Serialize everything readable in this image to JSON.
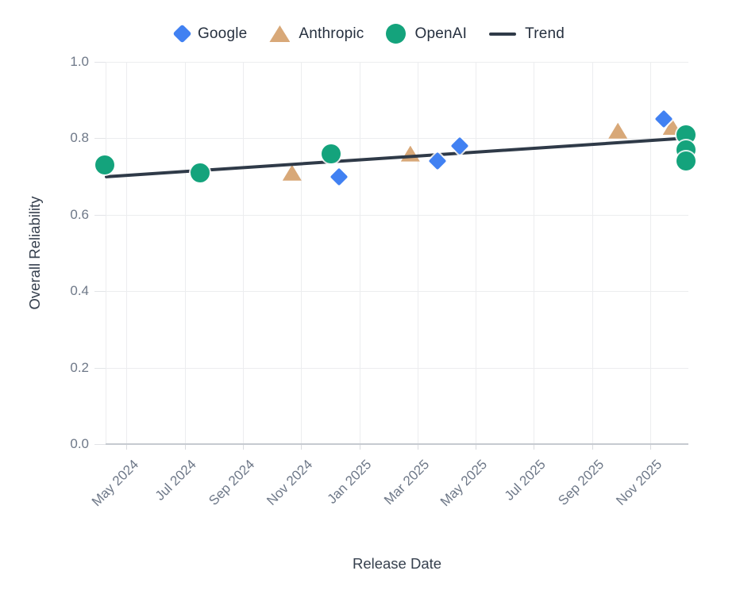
{
  "legend": {
    "items": [
      {
        "label": "Google",
        "marker": "diamond",
        "color": "#4181F2"
      },
      {
        "label": "Anthropic",
        "marker": "triangle",
        "color": "#D8A878"
      },
      {
        "label": "OpenAI",
        "marker": "circle",
        "color": "#14A37C"
      },
      {
        "label": "Trend",
        "marker": "line",
        "color": "#2F3A48"
      }
    ]
  },
  "chart_data": {
    "type": "scatter",
    "title": "",
    "xlabel": "Release Date",
    "ylabel": "Overall Reliability",
    "ylim": [
      0.0,
      1.0
    ],
    "grid": true,
    "legend_position": "top-center",
    "y_ticks": [
      {
        "label": "1.0",
        "value": 1.0
      },
      {
        "label": "0.8",
        "value": 0.8
      },
      {
        "label": "0.6",
        "value": 0.6
      },
      {
        "label": "0.4",
        "value": 0.4
      },
      {
        "label": "0.2",
        "value": 0.2
      },
      {
        "label": "0.0",
        "value": 0.0
      }
    ],
    "x_ticks": [
      {
        "label": "May 2024",
        "date": "2024-05-01"
      },
      {
        "label": "Jul 2024",
        "date": "2024-07-01"
      },
      {
        "label": "Sep 2024",
        "date": "2024-09-01"
      },
      {
        "label": "Nov 2024",
        "date": "2024-11-01"
      },
      {
        "label": "Jan 2025",
        "date": "2025-01-01"
      },
      {
        "label": "Mar 2025",
        "date": "2025-03-01"
      },
      {
        "label": "May 2025",
        "date": "2025-05-01"
      },
      {
        "label": "Jul 2025",
        "date": "2025-07-01"
      },
      {
        "label": "Sep 2025",
        "date": "2025-09-01"
      },
      {
        "label": "Nov 2025",
        "date": "2025-11-01"
      }
    ],
    "series": [
      {
        "name": "Google",
        "marker": "diamond",
        "color": "#4181F2",
        "points": [
          {
            "date": "2024-12-10",
            "reliability": 0.7
          },
          {
            "date": "2025-03-22",
            "reliability": 0.74
          },
          {
            "date": "2025-04-15",
            "reliability": 0.78
          },
          {
            "date": "2025-11-15",
            "reliability": 0.85
          }
        ]
      },
      {
        "name": "Anthropic",
        "marker": "triangle",
        "color": "#D8A878",
        "points": [
          {
            "date": "2024-10-22",
            "reliability": 0.71
          },
          {
            "date": "2025-02-24",
            "reliability": 0.76
          },
          {
            "date": "2025-09-28",
            "reliability": 0.82
          },
          {
            "date": "2025-11-24",
            "reliability": 0.83
          }
        ]
      },
      {
        "name": "OpenAI",
        "marker": "circle",
        "color": "#14A37C",
        "points": [
          {
            "date": "2024-04-09",
            "reliability": 0.73
          },
          {
            "date": "2024-07-17",
            "reliability": 0.71
          },
          {
            "date": "2024-12-02",
            "reliability": 0.76
          },
          {
            "date": "2025-12-08",
            "reliability": 0.81
          },
          {
            "date": "2025-12-08",
            "reliability": 0.77
          },
          {
            "date": "2025-12-08",
            "reliability": 0.74
          }
        ]
      }
    ],
    "trend": {
      "name": "Trend",
      "color": "#2F3A48",
      "start": {
        "date": "2024-04-09",
        "reliability": 0.7
      },
      "end": {
        "date": "2025-12-01",
        "reliability": 0.8
      }
    }
  }
}
